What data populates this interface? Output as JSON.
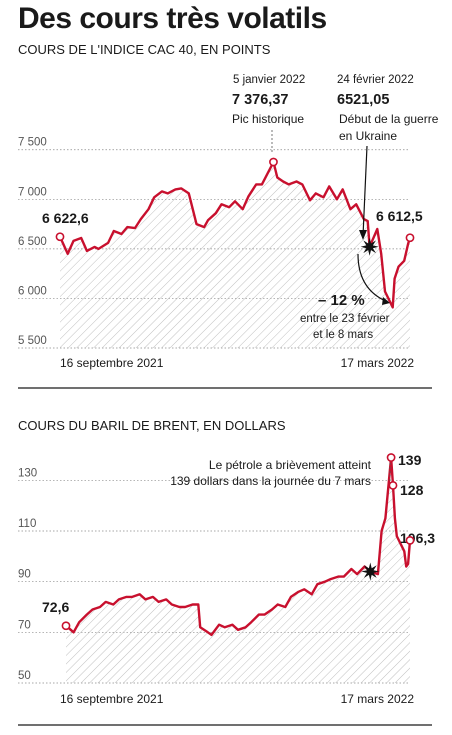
{
  "title": "Des cours très volatils",
  "chart_data": [
    {
      "type": "area",
      "subtitle": "COURS DE L'INDICE CAC 40, EN POINTS",
      "x_labels": [
        "16 septembre 2021",
        "17 mars 2022"
      ],
      "yticks": [
        "7 500",
        "7 000",
        "6 500",
        "6 000",
        "5 500"
      ],
      "ytick_values": [
        7500,
        7000,
        6500,
        6000,
        5500
      ],
      "ylim": [
        5500,
        7800
      ],
      "x_range": [
        "2021-09-16",
        "2022-03-17"
      ],
      "series": [
        {
          "color": "#c8102e",
          "x": [
            "2021-09-16",
            "2021-09-20",
            "2021-09-23",
            "2021-09-27",
            "2021-09-30",
            "2021-10-04",
            "2021-10-06",
            "2021-10-11",
            "2021-10-14",
            "2021-10-18",
            "2021-10-21",
            "2021-10-25",
            "2021-10-28",
            "2021-11-01",
            "2021-11-04",
            "2021-11-08",
            "2021-11-11",
            "2021-11-15",
            "2021-11-18",
            "2021-11-22",
            "2021-11-26",
            "2021-11-30",
            "2021-12-02",
            "2021-12-06",
            "2021-12-09",
            "2021-12-13",
            "2021-12-16",
            "2021-12-20",
            "2021-12-23",
            "2021-12-27",
            "2021-12-30",
            "2022-01-05",
            "2022-01-07",
            "2022-01-10",
            "2022-01-13",
            "2022-01-17",
            "2022-01-20",
            "2022-01-24",
            "2022-01-27",
            "2022-01-31",
            "2022-02-03",
            "2022-02-07",
            "2022-02-10",
            "2022-02-14",
            "2022-02-17",
            "2022-02-21",
            "2022-02-23",
            "2022-02-24",
            "2022-02-28",
            "2022-03-02",
            "2022-03-04",
            "2022-03-07",
            "2022-03-08",
            "2022-03-09",
            "2022-03-11",
            "2022-03-14",
            "2022-03-16",
            "2022-03-17"
          ],
          "values": [
            6622.6,
            6450,
            6580,
            6610,
            6480,
            6520,
            6500,
            6560,
            6680,
            6650,
            6720,
            6710,
            6800,
            6900,
            7020,
            7080,
            7060,
            7100,
            7110,
            7060,
            6750,
            6720,
            6790,
            6860,
            6950,
            6920,
            6980,
            6900,
            7030,
            7150,
            7150,
            7376.37,
            7220,
            7180,
            7150,
            7180,
            7150,
            6990,
            7060,
            7020,
            7130,
            7000,
            7100,
            6900,
            6950,
            6800,
            6780,
            6521.05,
            6700,
            6450,
            6070,
            5950,
            5910,
            6200,
            6320,
            6380,
            6550,
            6612.5
          ]
        }
      ],
      "labels": [
        {
          "date": "5 janvier 2022",
          "value": "7 376,37",
          "note": "Pic historique"
        },
        {
          "date": "24 février 2022",
          "value": "6521,05",
          "note_lines": [
            "Début de la guerre",
            "en Ukraine"
          ]
        },
        {
          "start_value": "6 622,6",
          "end_value": "6 612,5"
        },
        {
          "change": "– 12 %",
          "note_lines": [
            "entre le 23 février",
            "et le 8 mars"
          ]
        }
      ]
    },
    {
      "type": "area",
      "subtitle": "COURS DU BARIL DE BRENT, EN DOLLARS",
      "x_labels": [
        "16 septembre 2021",
        "17 mars 2022"
      ],
      "yticks": [
        "130",
        "110",
        "90",
        "70",
        "50"
      ],
      "ytick_values": [
        130,
        110,
        90,
        70,
        50
      ],
      "ylim": [
        50,
        140
      ],
      "x_range": [
        "2021-09-16",
        "2022-03-17"
      ],
      "series": [
        {
          "color": "#c8102e",
          "x": [
            "2021-09-16",
            "2021-09-20",
            "2021-09-23",
            "2021-09-27",
            "2021-09-30",
            "2021-10-04",
            "2021-10-07",
            "2021-10-11",
            "2021-10-14",
            "2021-10-18",
            "2021-10-21",
            "2021-10-25",
            "2021-10-28",
            "2021-11-01",
            "2021-11-04",
            "2021-11-08",
            "2021-11-11",
            "2021-11-15",
            "2021-11-18",
            "2021-11-22",
            "2021-11-25",
            "2021-11-26",
            "2021-11-30",
            "2021-12-02",
            "2021-12-06",
            "2021-12-09",
            "2021-12-13",
            "2021-12-16",
            "2021-12-20",
            "2021-12-23",
            "2021-12-27",
            "2021-12-30",
            "2022-01-03",
            "2022-01-06",
            "2022-01-10",
            "2022-01-13",
            "2022-01-17",
            "2022-01-20",
            "2022-01-24",
            "2022-01-27",
            "2022-01-31",
            "2022-02-03",
            "2022-02-07",
            "2022-02-10",
            "2022-02-14",
            "2022-02-17",
            "2022-02-21",
            "2022-02-24",
            "2022-02-28",
            "2022-03-02",
            "2022-03-04",
            "2022-03-07",
            "2022-03-08",
            "2022-03-09",
            "2022-03-10",
            "2022-03-14",
            "2022-03-15",
            "2022-03-16",
            "2022-03-17"
          ],
          "values": [
            72.6,
            70,
            74,
            77,
            79,
            80,
            82,
            81,
            83,
            84,
            84,
            85,
            83,
            84,
            82,
            83,
            81,
            80,
            80,
            81,
            81,
            72,
            70,
            69,
            73,
            72,
            73,
            71,
            72,
            74,
            77,
            77,
            79,
            81,
            80,
            84,
            86,
            87,
            85,
            89,
            90,
            91,
            92,
            92,
            95,
            93,
            96,
            94,
            93,
            110,
            115,
            139,
            128,
            115,
            108,
            102,
            96,
            97,
            106.3
          ]
        }
      ],
      "labels": [
        {
          "start_value": "72,6"
        },
        {
          "peak_value": "139",
          "note_lines": [
            "Le pétrole a brièvement atteint",
            "139 dollars dans la journée du 7 mars"
          ]
        },
        {
          "close_value": "128"
        },
        {
          "end_value": "106,3"
        }
      ]
    }
  ]
}
